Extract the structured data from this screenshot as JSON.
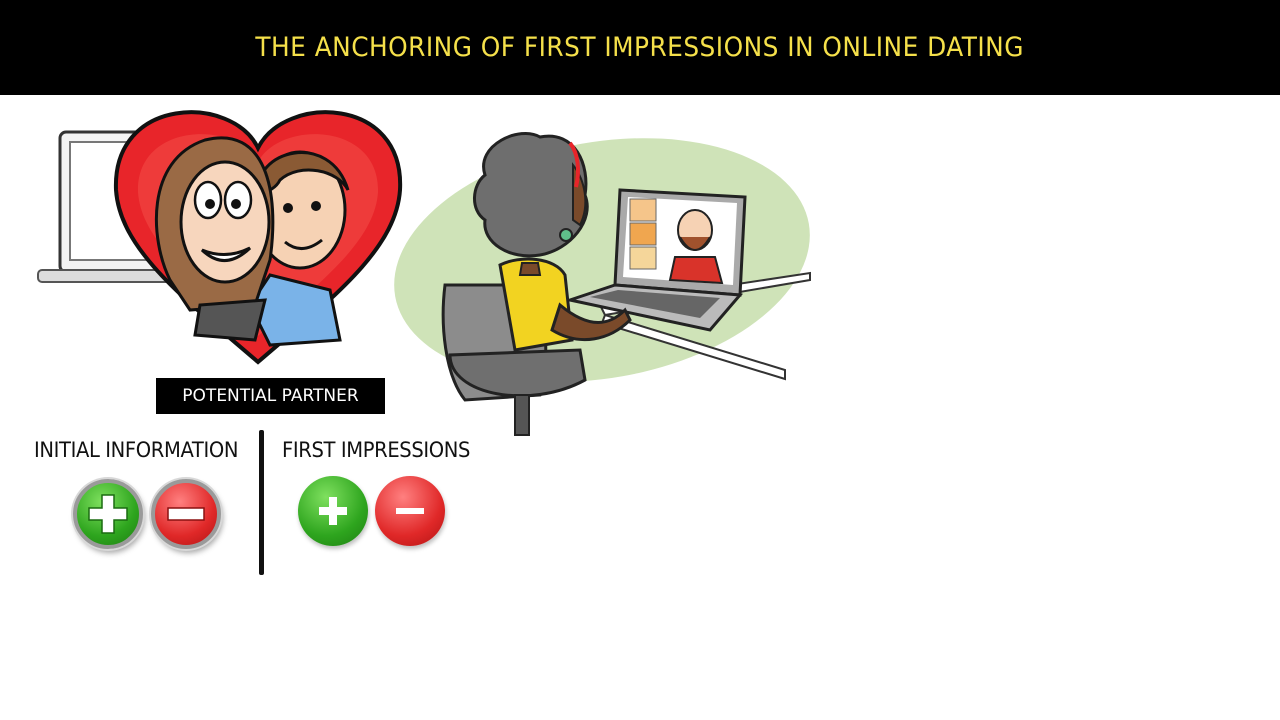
{
  "header": {
    "title": "THE ANCHORING OF FIRST IMPRESSIONS IN ONLINE DATING"
  },
  "illustrations": {
    "couple": "couple-in-heart-illustration",
    "video_call": "person-on-video-call-illustration"
  },
  "partner_label": "POTENTIAL PARTNER",
  "sections": {
    "initial_information": {
      "label": "INITIAL INFORMATION",
      "positive_icon": "plus-icon",
      "negative_icon": "minus-icon"
    },
    "first_impressions": {
      "label": "FIRST IMPRESSIONS",
      "positive_icon": "plus-icon",
      "negative_icon": "minus-icon"
    }
  },
  "colors": {
    "title_text": "#f5e04a",
    "title_bar": "#000000",
    "positive": "#2ea51e",
    "negative": "#e02828",
    "heart": "#e8252a",
    "backdrop": "#cfe3b8"
  }
}
